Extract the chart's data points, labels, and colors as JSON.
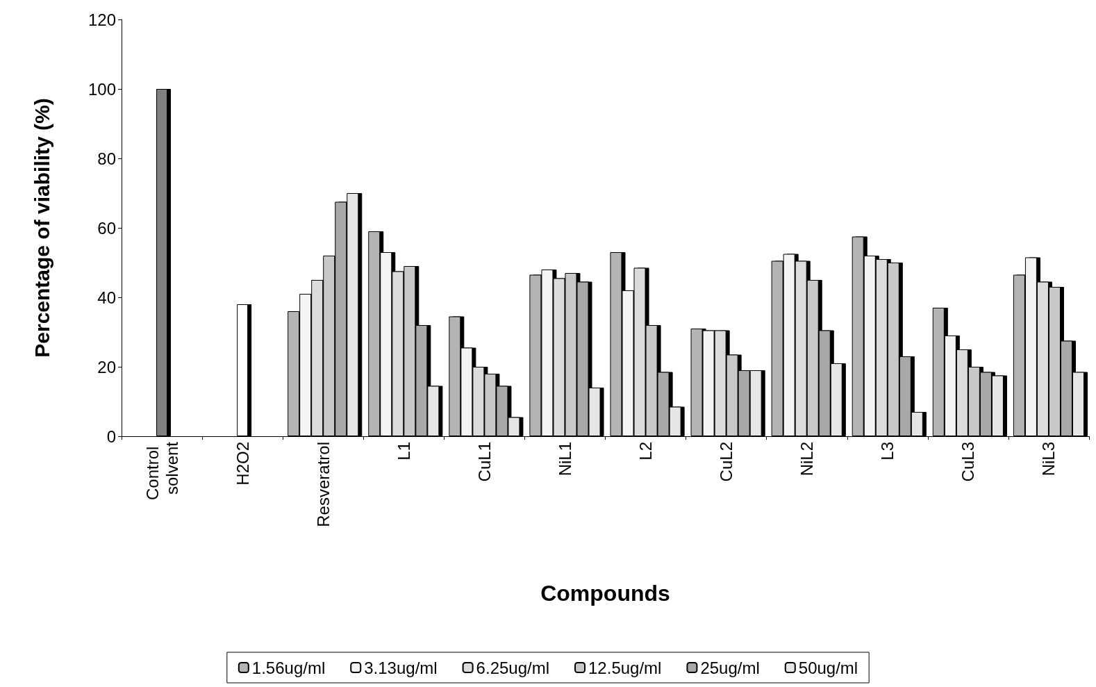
{
  "chart_data": {
    "type": "bar",
    "xlabel": "Compounds",
    "ylabel": "Percentage of viability (%)",
    "categories": [
      "Control solvent",
      "H2O2",
      "Resveratrol",
      "L1",
      "CuL1",
      "NiL1",
      "L2",
      "CuL2",
      "NiL2",
      "L3",
      "CuL3",
      "NiL3"
    ],
    "series": [
      {
        "name": "1.56ug/ml",
        "color": "#b4b4b4",
        "values": [
          null,
          null,
          36,
          59,
          34.5,
          46.5,
          53,
          31,
          50.5,
          57.5,
          37,
          46.5
        ]
      },
      {
        "name": "3.13ug/ml",
        "color": "#f4f4f4",
        "values": [
          null,
          null,
          41,
          53,
          25.5,
          48,
          42,
          30.5,
          52.5,
          52,
          29,
          51.5
        ]
      },
      {
        "name": "6.25ug/ml",
        "color": "#dcdcdc",
        "values": [
          null,
          null,
          45,
          47.5,
          20,
          45.5,
          48.5,
          30.5,
          50.5,
          51,
          25,
          44.5
        ]
      },
      {
        "name": "12.5ug/ml",
        "color": "#c8c8c8",
        "values": [
          null,
          null,
          52,
          49,
          18,
          47,
          32,
          23.5,
          45,
          50,
          20,
          43
        ]
      },
      {
        "name": "25ug/ml",
        "color": "#a8a8a8",
        "values": [
          null,
          null,
          67.5,
          32,
          14.5,
          44.5,
          18.5,
          19,
          30.5,
          23,
          18.5,
          27.5
        ]
      },
      {
        "name": "50ug/ml",
        "color": "#e6e6e6",
        "values": [
          null,
          null,
          70,
          14.5,
          5.5,
          14,
          8.5,
          19,
          21,
          7,
          17.5,
          18.5
        ]
      },
      {
        "colors": [
          "#808080",
          "#ffffff",
          null,
          null,
          null,
          null,
          null,
          null,
          null,
          null,
          null,
          null
        ],
        "values": [
          100,
          38,
          null,
          null,
          null,
          null,
          null,
          null,
          null,
          null,
          null,
          null
        ]
      }
    ],
    "ylim": [
      0,
      120
    ],
    "yticks": [
      0,
      20,
      40,
      60,
      80,
      100,
      120
    ],
    "grid": false,
    "legend": "bottom"
  }
}
